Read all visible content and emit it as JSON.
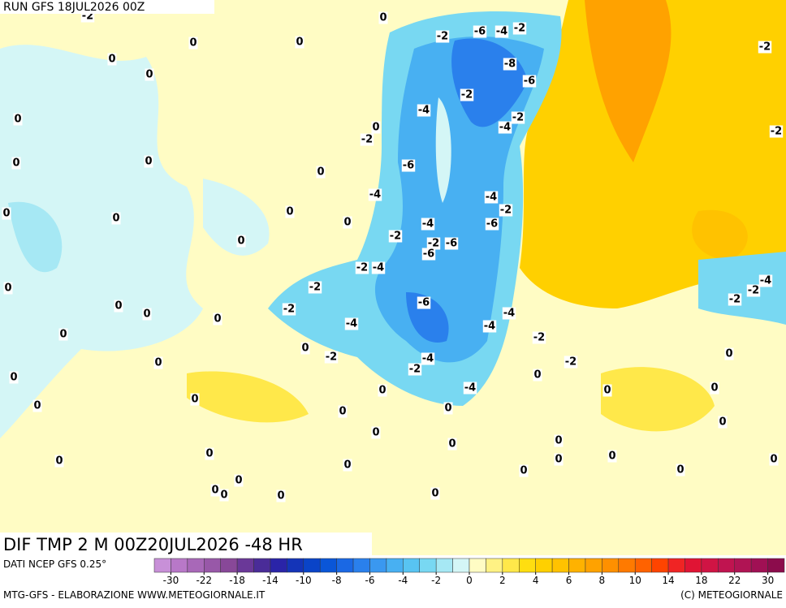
{
  "header": {
    "run": "RUN GFS 18JUL2026 00Z"
  },
  "footer": {
    "field": "DIF TMP 2 M 00Z20JUL2026 -48 HR",
    "source": "DATI NCEP GFS 0.25°",
    "credit": "MTG-GFS - ELABORAZIONE WWW.METEOGIORNALE.IT",
    "copyright": "(C) METEOGIORNALE"
  },
  "colorbar": {
    "colors": [
      "#c890d8",
      "#b878c8",
      "#a868b8",
      "#9858a8",
      "#884898",
      "#6a3898",
      "#4a2c98",
      "#2a24a8",
      "#1434b8",
      "#0a44c8",
      "#0a56d8",
      "#1a68e4",
      "#2a80ec",
      "#3a98f0",
      "#48b0f2",
      "#58c4f2",
      "#78d8f2",
      "#a6e8f4",
      "#d4f6f6",
      "#fffcc4",
      "#fff284",
      "#ffe84a",
      "#ffde10",
      "#ffd000",
      "#ffc200",
      "#ffb200",
      "#ffa200",
      "#ff9000",
      "#ff7a00",
      "#ff6200",
      "#ff4400",
      "#f02424",
      "#e01434",
      "#d01444",
      "#c01450",
      "#b01454",
      "#a01054",
      "#8c0c4c"
    ],
    "ticks": [
      -30,
      -22,
      -18,
      -14,
      -10,
      -8,
      -6,
      -4,
      -2,
      0,
      2,
      4,
      6,
      8,
      10,
      14,
      18,
      22,
      30
    ]
  },
  "map": {
    "labels": [
      "-2",
      "0",
      "0",
      "0",
      "0",
      "0",
      "-2",
      "-6",
      "-4",
      "-2",
      "-8",
      "-6",
      "-2",
      "-2",
      "0",
      "-4",
      "-2",
      "-4",
      "0",
      "-2",
      "-2",
      "0",
      "0",
      "0",
      "-6",
      "-4",
      "-4",
      "-2",
      "0",
      "0",
      "0",
      "0",
      "-4",
      "-6",
      "0",
      "-2",
      "-2",
      "-6",
      "-6",
      "-2",
      "-4",
      "-4",
      "0",
      "-2",
      "-2",
      "-2",
      "0",
      "0",
      "-2",
      "-6",
      "0",
      "-4",
      "-4",
      "-4",
      "0",
      "-2",
      "0",
      "-2",
      "-4",
      "-2",
      "0",
      "0",
      "-2",
      "0",
      "0",
      "-4",
      "0",
      "0",
      "0",
      "0",
      "0",
      "0",
      "0",
      "0",
      "0",
      "0",
      "0",
      "0",
      "0",
      "0",
      "0",
      "0",
      "0",
      "0",
      "0",
      "0",
      "0",
      "0",
      "0",
      "0"
    ]
  }
}
